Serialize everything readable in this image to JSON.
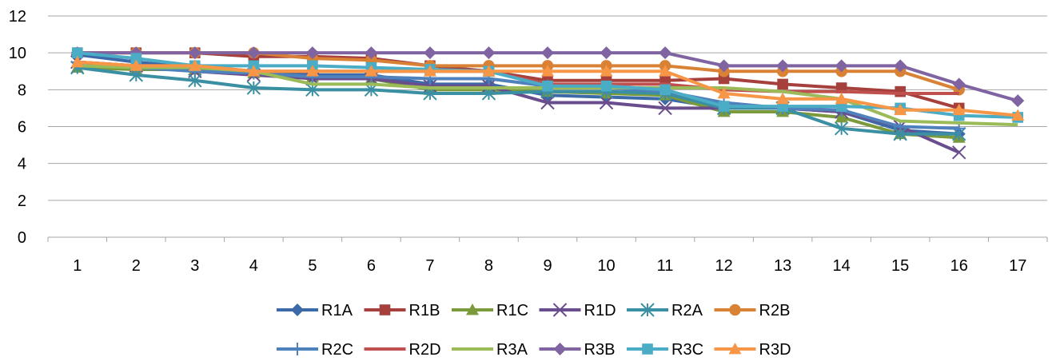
{
  "chart_data": {
    "type": "line",
    "title": "",
    "xlabel": "",
    "ylabel": "",
    "categories": [
      "1",
      "2",
      "3",
      "4",
      "5",
      "6",
      "7",
      "8",
      "9",
      "10",
      "11",
      "12",
      "13",
      "14",
      "15",
      "16",
      "17"
    ],
    "ylim": [
      0,
      12
    ],
    "yticks": [
      "0",
      "2",
      "4",
      "6",
      "8",
      "10",
      "12"
    ],
    "grid": "horizontal",
    "legend_position": "bottom",
    "series": [
      {
        "name": "R1A",
        "color": "#3c6aa8",
        "marker": "diamond",
        "values": [
          9.9,
          9.5,
          9.2,
          9.0,
          8.8,
          8.8,
          8.3,
          8.3,
          7.7,
          7.6,
          7.5,
          7.0,
          7.0,
          6.8,
          5.8,
          5.6,
          null
        ]
      },
      {
        "name": "R1B",
        "color": "#a5403d",
        "marker": "square",
        "values": [
          10.0,
          10.0,
          10.0,
          9.8,
          9.8,
          9.7,
          9.3,
          9.0,
          8.5,
          8.5,
          8.5,
          8.6,
          8.3,
          8.1,
          7.9,
          7.0,
          null
        ]
      },
      {
        "name": "R1C",
        "color": "#7a9a3c",
        "marker": "triangle",
        "values": [
          9.2,
          9.1,
          9.1,
          8.9,
          8.7,
          8.6,
          8.0,
          8.0,
          7.9,
          7.8,
          7.7,
          6.8,
          6.8,
          6.5,
          5.6,
          5.4,
          null
        ]
      },
      {
        "name": "R1D",
        "color": "#6a4d8c",
        "marker": "x",
        "values": [
          9.5,
          9.3,
          9.0,
          8.8,
          8.6,
          8.6,
          8.2,
          8.2,
          7.3,
          7.3,
          7.0,
          7.0,
          7.0,
          6.8,
          6.0,
          4.6,
          null
        ]
      },
      {
        "name": "R2A",
        "color": "#3a8fa3",
        "marker": "asterisk",
        "values": [
          9.2,
          8.8,
          8.5,
          8.1,
          8.0,
          8.0,
          7.8,
          7.8,
          7.9,
          7.9,
          7.8,
          7.0,
          7.0,
          5.9,
          5.6,
          5.6,
          null
        ]
      },
      {
        "name": "R2B",
        "color": "#d98236",
        "marker": "circle",
        "values": [
          10.0,
          10.0,
          10.0,
          10.0,
          9.7,
          9.6,
          9.3,
          9.3,
          9.3,
          9.3,
          9.3,
          9.0,
          9.0,
          9.0,
          9.0,
          8.0,
          null
        ]
      },
      {
        "name": "R2C",
        "color": "#4f81bd",
        "marker": "plus",
        "values": [
          9.5,
          9.2,
          9.0,
          8.9,
          8.7,
          8.7,
          8.6,
          8.6,
          8.2,
          8.1,
          7.9,
          7.3,
          7.0,
          6.9,
          6.0,
          5.9,
          null
        ]
      },
      {
        "name": "R2D",
        "color": "#c0504d",
        "marker": "none",
        "values": [
          9.5,
          9.3,
          9.3,
          9.0,
          9.0,
          9.0,
          9.0,
          9.0,
          8.3,
          8.3,
          8.3,
          8.0,
          7.9,
          7.9,
          7.8,
          7.8,
          null
        ]
      },
      {
        "name": "R3A",
        "color": "#9bbb59",
        "marker": "none",
        "values": [
          9.3,
          9.2,
          9.2,
          9.0,
          8.3,
          8.3,
          8.1,
          8.1,
          8.1,
          8.1,
          8.1,
          8.1,
          7.9,
          7.5,
          6.3,
          6.2,
          6.1
        ]
      },
      {
        "name": "R3B",
        "color": "#8064a2",
        "marker": "diamond",
        "values": [
          10.0,
          10.0,
          10.0,
          10.0,
          10.0,
          10.0,
          10.0,
          10.0,
          10.0,
          10.0,
          10.0,
          9.3,
          9.3,
          9.3,
          9.3,
          8.3,
          7.4
        ]
      },
      {
        "name": "R3C",
        "color": "#4bacc6",
        "marker": "square",
        "values": [
          10.0,
          9.7,
          9.3,
          9.3,
          9.3,
          9.2,
          9.1,
          9.0,
          8.2,
          8.2,
          8.0,
          7.1,
          7.1,
          7.1,
          7.0,
          6.6,
          6.5
        ]
      },
      {
        "name": "R3D",
        "color": "#f79646",
        "marker": "triangle",
        "values": [
          9.5,
          9.3,
          9.3,
          9.0,
          9.0,
          9.0,
          9.0,
          9.0,
          9.0,
          9.0,
          9.0,
          7.8,
          7.5,
          7.5,
          6.9,
          6.9,
          6.6
        ]
      }
    ]
  }
}
